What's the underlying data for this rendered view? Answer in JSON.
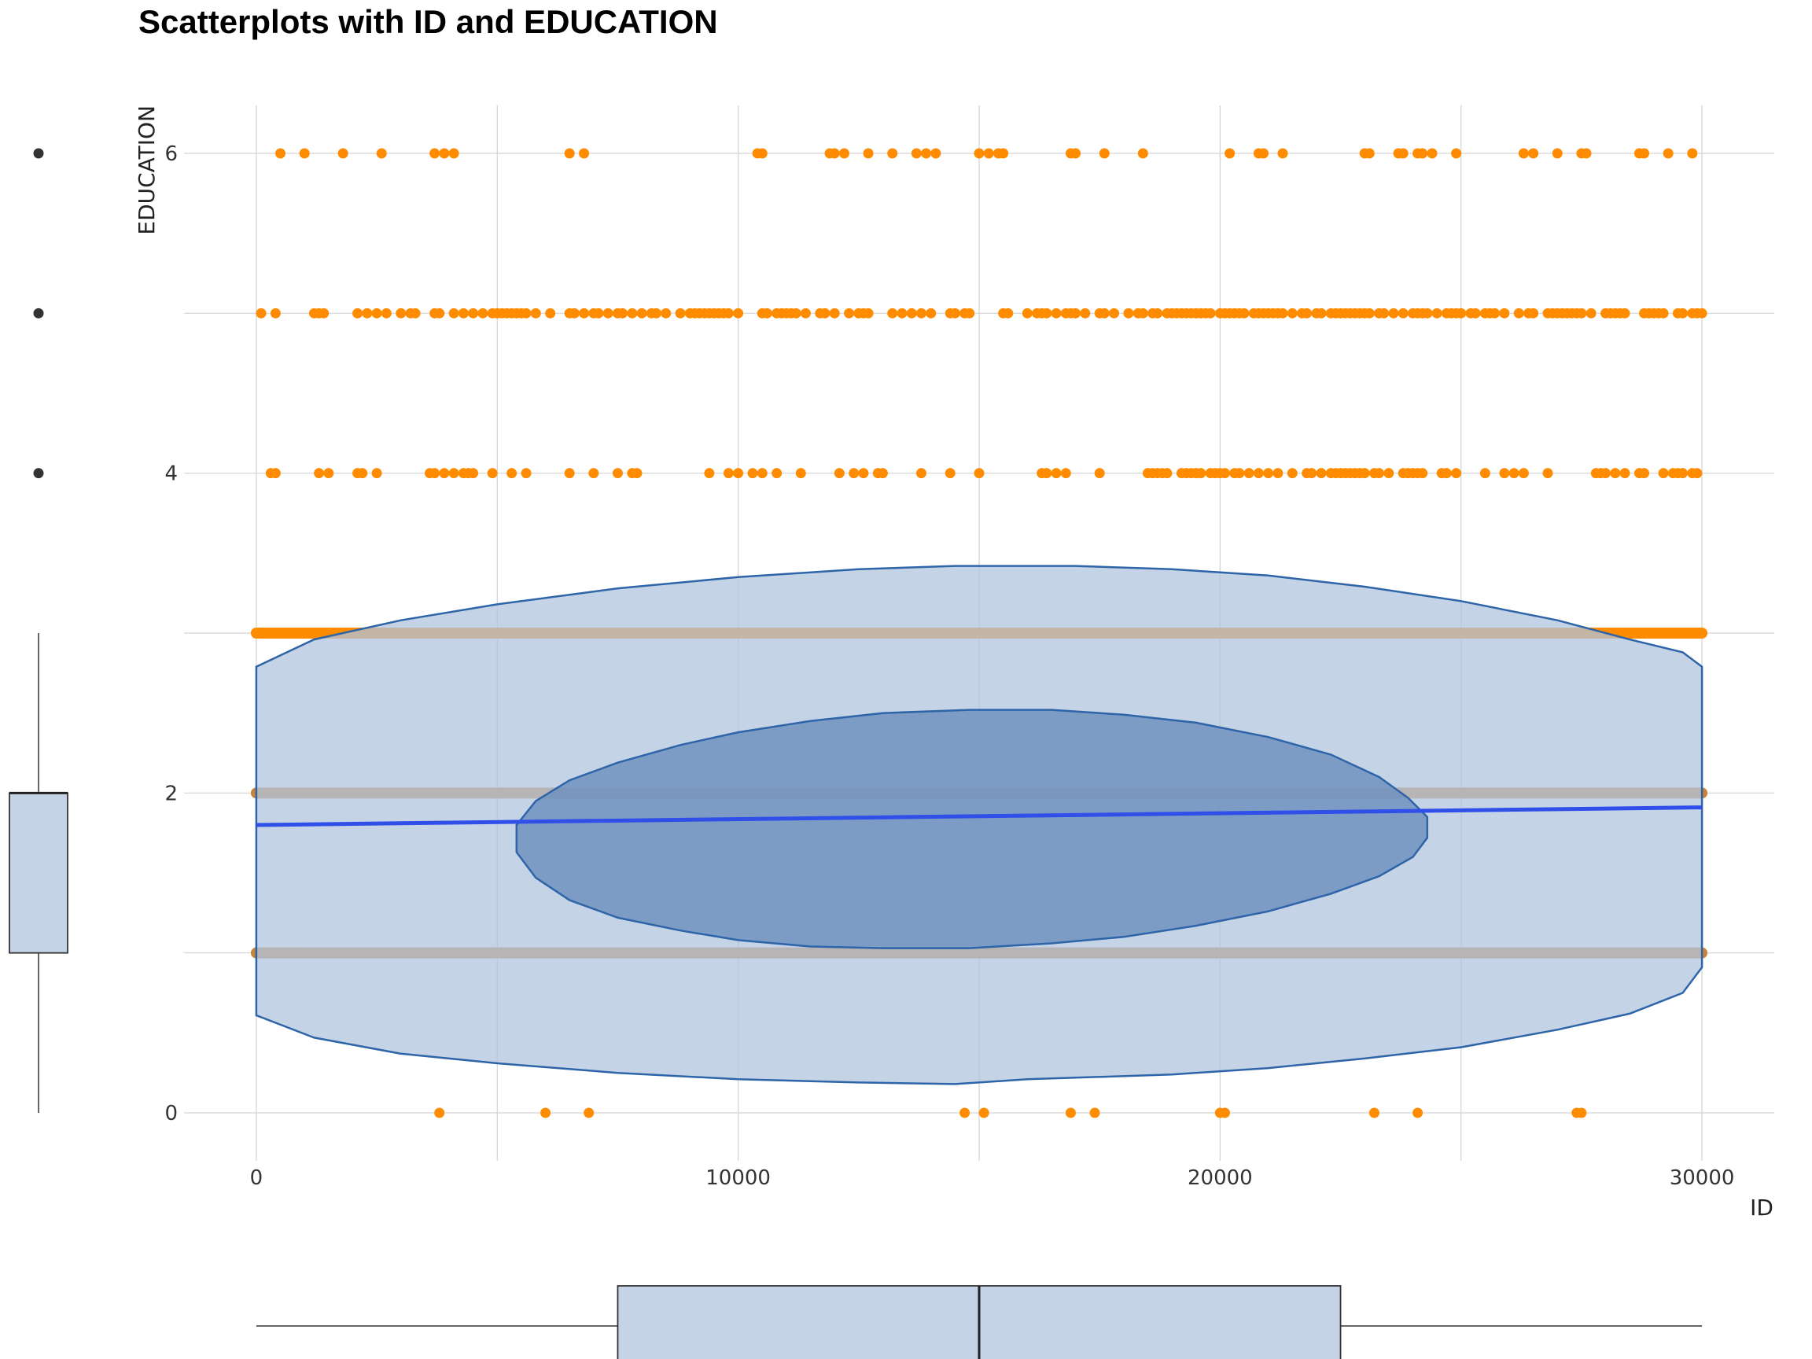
{
  "chart_data": {
    "type": "scatter",
    "title": "Scatterplots with ID and EDUCATION",
    "xlabel": "ID",
    "ylabel": "EDUCATION",
    "xlim": [
      -1500,
      31500
    ],
    "ylim": [
      -0.3,
      6.3
    ],
    "x_ticks": [
      "0",
      "10000",
      "20000",
      "30000"
    ],
    "x_tick_values": [
      0,
      10000,
      20000,
      30000
    ],
    "y_ticks": [
      "0",
      "2",
      "4",
      "6"
    ],
    "y_tick_values": [
      0,
      2,
      4,
      6
    ],
    "grid": true,
    "colors": {
      "points": "#FF8C00",
      "dense_band": "#C8843A",
      "ellipse_fill": "#B0C4DE",
      "ellipse_stroke": "#2E64A8",
      "inner_fill": "#6A8FBE",
      "fit_line": "#2F4FE8",
      "box_fill": "#C4D3E5",
      "grid": "#D3D3D3"
    },
    "dense_bands": [
      1,
      2,
      3
    ],
    "dense_band_x_range": [
      0,
      30000
    ],
    "points": [
      {
        "y": 6,
        "x": [
          500,
          1000,
          1800,
          2600,
          3700,
          3900,
          4100,
          6500,
          6800,
          10400,
          10500,
          11900,
          12000,
          12200,
          12700,
          13200,
          13700,
          13900,
          14100,
          15000,
          15200,
          15400,
          15500,
          16900,
          17000,
          17600,
          18400,
          20200,
          20800,
          20900,
          21300,
          23000,
          23100,
          23700,
          23800,
          24100,
          24200,
          24400,
          24900,
          26300,
          26500,
          27000,
          27500,
          27600,
          28700,
          28800,
          29300,
          29800
        ]
      },
      {
        "y": 5,
        "x": [
          100,
          400,
          1200,
          1300,
          1400,
          2100,
          2300,
          2500,
          2700,
          3000,
          3200,
          3300,
          3700,
          3800,
          4100,
          4300,
          4500,
          4700,
          4900,
          5000,
          5100,
          5200,
          5300,
          5400,
          5500,
          5600,
          5800,
          6100,
          6500,
          6600,
          6800,
          7000,
          7100,
          7300,
          7500,
          7600,
          7800,
          8000,
          8200,
          8300,
          8500,
          8800,
          9000,
          9100,
          9200,
          9300,
          9400,
          9500,
          9600,
          9700,
          9800,
          10000,
          10500,
          10600,
          10800,
          10900,
          11000,
          11100,
          11200,
          11400,
          11700,
          11800,
          12000,
          12300,
          12500,
          12600,
          12700,
          13200,
          13400,
          13600,
          13800,
          14000,
          14400,
          14500,
          14700,
          14800,
          15500,
          15600,
          16000,
          16200,
          16300,
          16400,
          16600,
          16800,
          16900,
          17000,
          17200,
          17500,
          17600,
          17800,
          18100,
          18300,
          18400,
          18600,
          18700,
          18900,
          19000,
          19100,
          19200,
          19300,
          19400,
          19500,
          19600,
          19700,
          19800,
          20000,
          20100,
          20200,
          20300,
          20400,
          20500,
          20700,
          20800,
          20900,
          21000,
          21100,
          21200,
          21300,
          21500,
          21700,
          21800,
          22000,
          22100,
          22300,
          22400,
          22500,
          22600,
          22700,
          22800,
          22900,
          23000,
          23100,
          23300,
          23400,
          23600,
          23800,
          24000,
          24100,
          24200,
          24300,
          24500,
          24700,
          24800,
          24900,
          25000,
          25200,
          25300,
          25500,
          25600,
          25700,
          25900,
          26200,
          26400,
          26500,
          26800,
          26900,
          27000,
          27100,
          27200,
          27300,
          27400,
          27500,
          27700,
          28000,
          28100,
          28200,
          28300,
          28400,
          28800,
          28900,
          29000,
          29100,
          29200,
          29500,
          29600,
          29800,
          29900,
          30000
        ]
      },
      {
        "y": 4,
        "x": [
          300,
          400,
          1300,
          1500,
          2100,
          2200,
          2500,
          3600,
          3700,
          3900,
          4100,
          4300,
          4400,
          4500,
          4900,
          5300,
          5600,
          6500,
          7000,
          7500,
          7800,
          7900,
          9400,
          9800,
          10000,
          10300,
          10500,
          10800,
          11300,
          12100,
          12400,
          12600,
          12900,
          13000,
          13800,
          14400,
          15000,
          16300,
          16400,
          16600,
          16800,
          17500,
          18500,
          18600,
          18700,
          18800,
          18900,
          19200,
          19300,
          19400,
          19500,
          19600,
          19800,
          19900,
          20000,
          20100,
          20300,
          20400,
          20600,
          20800,
          21000,
          21200,
          21500,
          21800,
          21900,
          22100,
          22300,
          22400,
          22500,
          22600,
          22700,
          22800,
          22900,
          23000,
          23200,
          23300,
          23500,
          23800,
          23900,
          24000,
          24100,
          24200,
          24600,
          24700,
          24900,
          25500,
          25900,
          26100,
          26300,
          26800,
          27800,
          27900,
          28000,
          28200,
          28400,
          28700,
          28800,
          29200,
          29400,
          29500,
          29600,
          29800,
          29900
        ]
      },
      {
        "y": 0,
        "x": [
          3800,
          6000,
          6900,
          14700,
          15100,
          16900,
          17400,
          20000,
          20100,
          23200,
          24100,
          27400,
          27500
        ]
      }
    ],
    "fit_line": {
      "x": [
        0,
        30000
      ],
      "y": [
        1.8,
        1.91
      ]
    },
    "outer_ellipse": {
      "x": [
        0,
        1200,
        3000,
        5000,
        7500,
        10000,
        12500,
        14500,
        16000,
        17000,
        19000,
        21000,
        23000,
        25000,
        27000,
        28500,
        29600,
        30000,
        30000,
        29600,
        28500,
        27000,
        25000,
        23000,
        21000,
        19000,
        17000,
        16000,
        14500,
        12500,
        10000,
        7500,
        5000,
        3000,
        1200,
        0
      ],
      "y": [
        2.79,
        2.96,
        3.08,
        3.18,
        3.28,
        3.35,
        3.4,
        3.42,
        3.42,
        3.42,
        3.4,
        3.36,
        3.29,
        3.2,
        3.08,
        2.96,
        2.88,
        2.79,
        0.91,
        0.75,
        0.62,
        0.52,
        0.41,
        0.34,
        0.28,
        0.24,
        0.22,
        0.21,
        0.18,
        0.19,
        0.21,
        0.25,
        0.31,
        0.37,
        0.47,
        0.61
      ]
    },
    "inner_ellipse": {
      "x": [
        5400,
        5800,
        6500,
        7500,
        8800,
        10000,
        11500,
        13000,
        14800,
        16500,
        18000,
        19500,
        21000,
        22300,
        23300,
        23900,
        24300,
        24300,
        24000,
        23300,
        22300,
        21000,
        19500,
        18000,
        16500,
        14800,
        13000,
        11500,
        10000,
        8800,
        7500,
        6500,
        5800,
        5400
      ],
      "y": [
        1.8,
        1.95,
        2.08,
        2.19,
        2.3,
        2.38,
        2.45,
        2.5,
        2.52,
        2.52,
        2.49,
        2.44,
        2.35,
        2.24,
        2.1,
        1.97,
        1.85,
        1.72,
        1.6,
        1.48,
        1.37,
        1.26,
        1.17,
        1.1,
        1.06,
        1.03,
        1.03,
        1.04,
        1.08,
        1.14,
        1.22,
        1.33,
        1.47,
        1.63
      ]
    },
    "y_boxplot": {
      "min": 0,
      "q1": 1,
      "median": 2,
      "q3": 2,
      "max": 3,
      "outliers": [
        4,
        5,
        6
      ]
    },
    "x_boxplot": {
      "min": 0,
      "q1": 7500,
      "median": 15000,
      "q3": 22500,
      "max": 30000
    }
  }
}
